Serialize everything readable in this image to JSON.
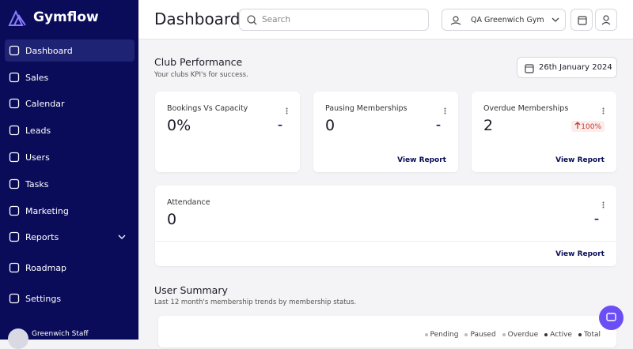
{
  "sidebar": {
    "brand": "Gymflow",
    "nav": [
      "Dashboard",
      "Sales",
      "Calendar",
      "Leads",
      "Users",
      "Tasks",
      "Marketing",
      "Reports",
      "Roadmap",
      "Settings"
    ],
    "user": "Greenwich Staff"
  },
  "header": {
    "title": "Dashboard",
    "search_placeholder": "Search",
    "location": "QA Greenwich Gym"
  },
  "club_performance": {
    "title": "Club Performance",
    "subtitle": "Your clubs KPI's for success.",
    "date": "26th January 2024",
    "cards": [
      {
        "label": "Bookings Vs Capacity",
        "value": "0%",
        "change": "–"
      },
      {
        "label": "Pausing Memberships",
        "value": "0",
        "change": "–",
        "link": "View Report"
      },
      {
        "label": "Overdue Memberships",
        "value": "2",
        "change": "100%",
        "link": "View Report"
      },
      {
        "label": "Attendance",
        "value": "0",
        "change": "–",
        "link": "View Report"
      }
    ]
  },
  "user_summary": {
    "title": "User Summary",
    "subtitle": "Last 12 month's membership trends by membership status.",
    "legend": [
      "Pending",
      "Paused",
      "Overdue",
      "Active",
      "Total"
    ]
  }
}
